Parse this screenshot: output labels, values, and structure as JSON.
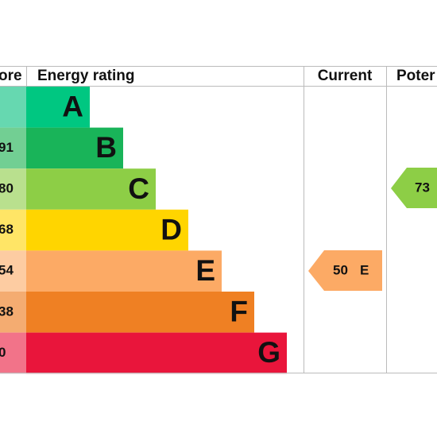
{
  "header": {
    "score": "ore",
    "rating": "Energy rating",
    "current": "Current",
    "potential": "Poter"
  },
  "rows": [
    {
      "score": "",
      "letter": "A"
    },
    {
      "score": "91",
      "letter": "B"
    },
    {
      "score": "80",
      "letter": "C"
    },
    {
      "score": "68",
      "letter": "D"
    },
    {
      "score": "54",
      "letter": "E"
    },
    {
      "score": "38",
      "letter": "F"
    },
    {
      "score": "0",
      "letter": "G"
    }
  ],
  "current": {
    "label": "50",
    "letter": "E"
  },
  "potential": {
    "label": "73"
  }
}
